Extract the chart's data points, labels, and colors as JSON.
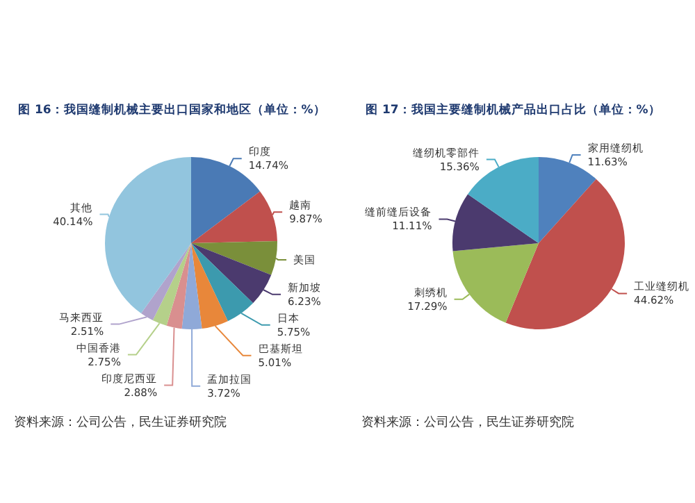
{
  "chart_data": [
    {
      "type": "pie",
      "title": "图 16：我国缝制机械主要出口国家和地区（单位：%）",
      "categories": [
        "印度",
        "越南",
        "美国",
        "新加坡",
        "日本",
        "巴基斯坦",
        "孟加拉国",
        "印度尼西亚",
        "中国香港",
        "马来西亚",
        "其他"
      ],
      "values": [
        14.74,
        9.87,
        6.4,
        6.23,
        5.75,
        5.01,
        3.72,
        2.88,
        2.75,
        2.51,
        40.14
      ],
      "value_labels": [
        "14.74%",
        "9.87%",
        null,
        "6.23%",
        "5.75%",
        "5.01%",
        "3.72%",
        "2.88%",
        "2.75%",
        "2.51%",
        "40.14%"
      ],
      "colors": [
        "#4a7ab5",
        "#c0504d",
        "#7a8f3a",
        "#4b3a6e",
        "#3c9aae",
        "#e8873a",
        "#8fa9d8",
        "#d98f8f",
        "#b5d08a",
        "#b0a3cc",
        "#92c5de"
      ],
      "annotations": [
        "资料来源：公司公告，民生证券研究院"
      ]
    },
    {
      "type": "pie",
      "title": "图 17：我国主要缝制机械产品出口占比（单位：%）",
      "categories": [
        "家用缝纫机",
        "工业缝纫机",
        "刺绣机",
        "缝前缝后设备",
        "缝纫机零部件"
      ],
      "values": [
        11.63,
        44.62,
        17.29,
        11.11,
        15.36
      ],
      "value_labels": [
        "11.63%",
        "44.62%",
        "17.29%",
        "11.11%",
        "15.36%"
      ],
      "colors": [
        "#4f81bd",
        "#c0504d",
        "#9bbb59",
        "#4b3a6e",
        "#4bacc6"
      ],
      "annotations": [
        "资料来源：公司公告，民生证券研究院"
      ]
    }
  ]
}
